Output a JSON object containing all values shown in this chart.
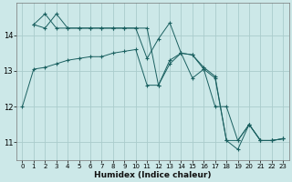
{
  "xlabel": "Humidex (Indice chaleur)",
  "background_color": "#cce8e8",
  "grid_color": "#aacccc",
  "line_color": "#1a6060",
  "xlim": [
    -0.5,
    23.5
  ],
  "ylim": [
    10.5,
    14.9
  ],
  "yticks": [
    11,
    12,
    13,
    14
  ],
  "xticks": [
    0,
    1,
    2,
    3,
    4,
    5,
    6,
    7,
    8,
    9,
    10,
    11,
    12,
    13,
    14,
    15,
    16,
    17,
    18,
    19,
    20,
    21,
    22,
    23
  ],
  "series1_x": [
    0,
    1,
    2,
    3,
    4,
    5,
    6,
    7,
    8,
    9,
    10,
    11,
    12,
    13,
    14,
    15,
    16,
    17,
    18,
    19,
    20,
    21,
    22,
    23
  ],
  "series1_y": [
    12.0,
    13.05,
    13.1,
    13.2,
    13.3,
    13.35,
    13.4,
    13.4,
    13.5,
    13.55,
    13.6,
    12.6,
    12.6,
    13.2,
    13.5,
    13.45,
    13.1,
    12.85,
    11.05,
    10.8,
    11.5,
    11.05,
    11.05,
    11.1
  ],
  "series2_x": [
    1,
    2,
    3,
    4,
    5,
    6,
    7,
    8,
    9,
    10,
    11,
    12,
    13,
    14,
    15,
    16,
    17,
    18,
    19,
    20,
    21,
    22,
    23
  ],
  "series2_y": [
    14.3,
    14.2,
    14.6,
    14.2,
    14.2,
    14.2,
    14.2,
    14.2,
    14.2,
    14.2,
    14.2,
    12.6,
    13.3,
    13.5,
    13.45,
    13.05,
    12.8,
    11.05,
    11.05,
    11.5,
    11.05,
    11.05,
    11.1
  ],
  "series3_x": [
    1,
    2,
    3,
    4,
    5,
    6,
    7,
    8,
    9,
    10,
    11,
    12,
    13,
    14,
    15,
    16,
    17,
    18,
    19,
    20,
    21,
    22,
    23
  ],
  "series3_y": [
    14.3,
    14.6,
    14.2,
    14.2,
    14.2,
    14.2,
    14.2,
    14.2,
    14.2,
    14.2,
    13.35,
    13.9,
    14.35,
    13.5,
    12.8,
    13.05,
    12.0,
    12.0,
    11.05,
    11.5,
    11.05,
    11.05,
    11.1
  ]
}
